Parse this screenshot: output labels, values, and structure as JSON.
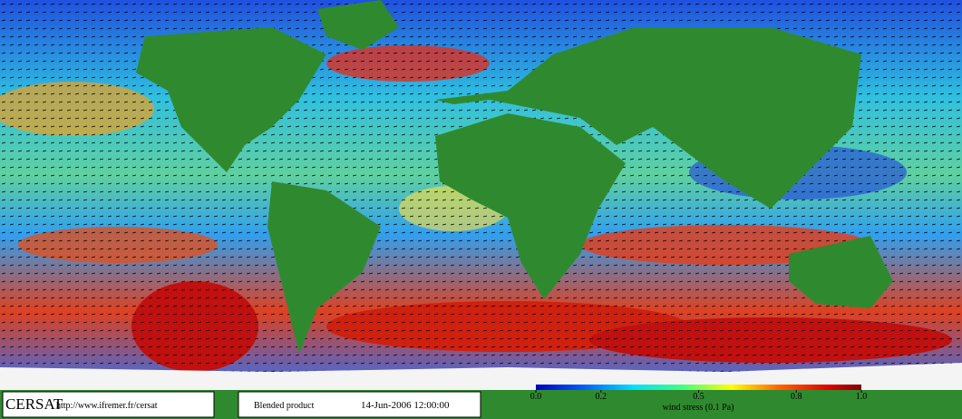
{
  "footer": {
    "logo": "CERSAT",
    "url": "http://www.ifremer.fr/cersat",
    "product": "Blended product",
    "date": "14-Jun-2006 12:00:00"
  },
  "colorbar": {
    "label": "wind stress (0.1 Pa)",
    "range": [
      0,
      1
    ],
    "ticks": [
      {
        "value": 0,
        "label": "0.0"
      },
      {
        "value": 0.2,
        "label": "0.2"
      },
      {
        "value": 0.5,
        "label": "0.5"
      },
      {
        "value": 0.8,
        "label": "0.8"
      },
      {
        "value": 1,
        "label": "1.0"
      }
    ]
  }
}
